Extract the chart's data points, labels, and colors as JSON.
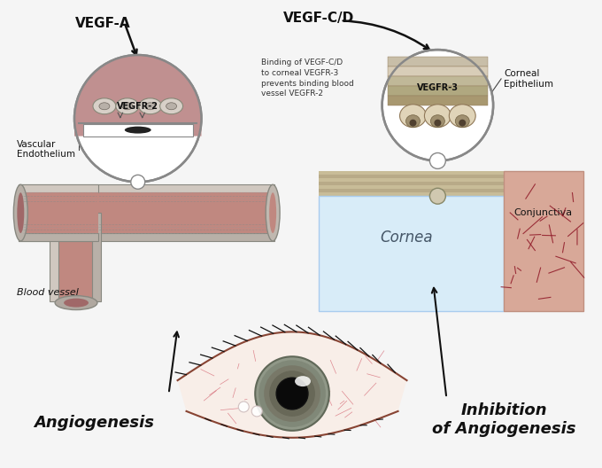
{
  "background_color": "#e8e8e8",
  "labels": {
    "vegf_a": "VEGF-A",
    "vegf_cd": "VEGF-C/D",
    "vegfr2": "VEGFR-2",
    "vegfr3": "VEGFR-3",
    "vascular_endothelium": "Vascular\nEndothelium",
    "blood_vessel": "Blood vessel",
    "corneal_epithelium": "Corneal\nEpithelium",
    "cornea": "Cornea",
    "conjunctiva": "Conjunctiva",
    "angiogenesis": "Angiogenesis",
    "inhibition": "Inhibition\nof Angiogenesis",
    "binding_text": "Binding of VEGF-C/D\nto corneal VEGFR-3\nprevents binding blood\nvessel VEGFR-2"
  },
  "colors": {
    "background": "#e0e0e0",
    "page_bg": "#f5f5f5",
    "vessel_wall": "#c0b8b0",
    "vessel_lumen": "#c08880",
    "vessel_dark": "#a06868",
    "circle_bg": "#f0ede8",
    "cornea_bg": "#d8eef8",
    "conjunctiva_bg": "#e0b0a8",
    "tissue_tan": "#c8b888",
    "tissue_dark": "#b0a070",
    "text_dark": "#111111",
    "cell_light": "#e8dcc8",
    "cell_dark": "#c0aa88",
    "lumen_dark": "#8a3030",
    "white": "#ffffff",
    "gray_line": "#888888",
    "arrow_color": "#111111"
  },
  "figsize": [
    6.8,
    5.28
  ],
  "dpi": 100
}
